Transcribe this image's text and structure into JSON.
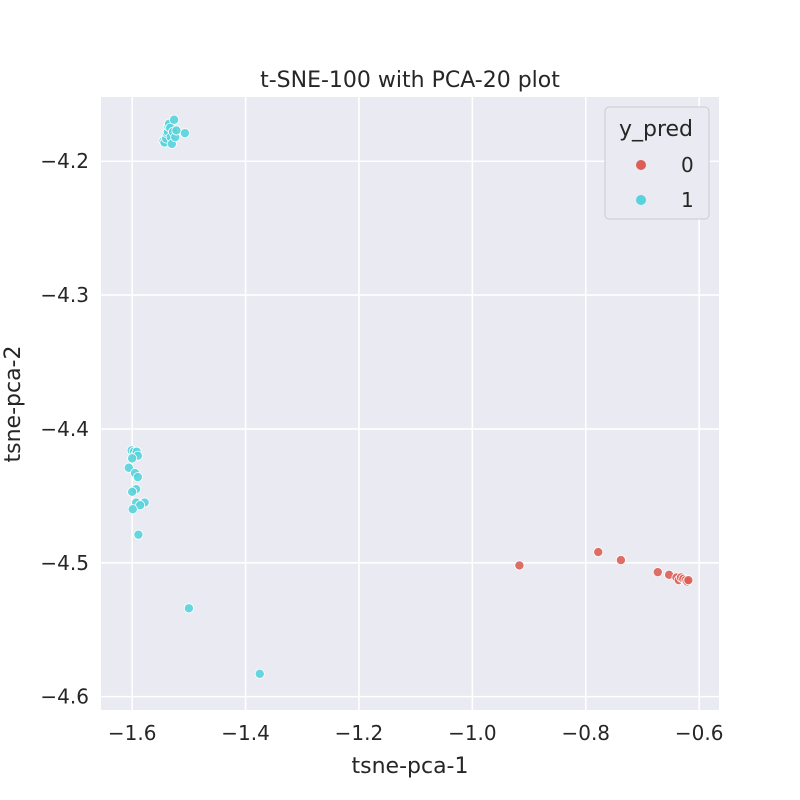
{
  "chart_data": {
    "type": "scatter",
    "title": "t-SNE-100 with PCA-20 plot",
    "xlabel": "tsne-pca-1",
    "ylabel": "tsne-pca-2",
    "xlim": [
      -1.655,
      -0.565
    ],
    "ylim": [
      -4.61,
      -4.152
    ],
    "xticks": [
      -1.6,
      -1.4,
      -1.2,
      -1.0,
      -0.8,
      -0.6
    ],
    "xtick_labels": [
      "−1.6",
      "−1.4",
      "−1.2",
      "−1.0",
      "−0.8",
      "−0.6"
    ],
    "yticks": [
      -4.2,
      -4.3,
      -4.4,
      -4.5,
      -4.6
    ],
    "ytick_labels": [
      "−4.2",
      "−4.3",
      "−4.4",
      "−4.5",
      "−4.6"
    ],
    "grid": true,
    "legend": {
      "title": "y_pred",
      "placement": "top-right"
    },
    "series": [
      {
        "name": "0",
        "color": "#db5f57",
        "points": [
          [
            -0.917,
            -4.502
          ],
          [
            -0.778,
            -4.492
          ],
          [
            -0.738,
            -4.498
          ],
          [
            -0.673,
            -4.507
          ],
          [
            -0.653,
            -4.509
          ],
          [
            -0.64,
            -4.511
          ],
          [
            -0.636,
            -4.513
          ],
          [
            -0.632,
            -4.511
          ],
          [
            -0.628,
            -4.512
          ],
          [
            -0.624,
            -4.513
          ],
          [
            -0.621,
            -4.514
          ],
          [
            -0.619,
            -4.513
          ]
        ]
      },
      {
        "name": "1",
        "color": "#57d3db",
        "points": [
          [
            -1.545,
            -4.185
          ],
          [
            -1.543,
            -4.186
          ],
          [
            -1.54,
            -4.183
          ],
          [
            -1.539,
            -4.179
          ],
          [
            -1.537,
            -4.178
          ],
          [
            -1.536,
            -4.174
          ],
          [
            -1.535,
            -4.172
          ],
          [
            -1.533,
            -4.175
          ],
          [
            -1.532,
            -4.182
          ],
          [
            -1.53,
            -4.187
          ],
          [
            -1.528,
            -4.178
          ],
          [
            -1.526,
            -4.169
          ],
          [
            -1.524,
            -4.182
          ],
          [
            -1.522,
            -4.177
          ],
          [
            -1.507,
            -4.179
          ],
          [
            -1.601,
            -4.416
          ],
          [
            -1.597,
            -4.417
          ],
          [
            -1.594,
            -4.419
          ],
          [
            -1.592,
            -4.417
          ],
          [
            -1.59,
            -4.42
          ],
          [
            -1.6,
            -4.422
          ],
          [
            -1.606,
            -4.429
          ],
          [
            -1.595,
            -4.433
          ],
          [
            -1.59,
            -4.436
          ],
          [
            -1.593,
            -4.445
          ],
          [
            -1.6,
            -4.447
          ],
          [
            -1.593,
            -4.455
          ],
          [
            -1.578,
            -4.455
          ],
          [
            -1.586,
            -4.457
          ],
          [
            -1.599,
            -4.46
          ],
          [
            -1.589,
            -4.479
          ],
          [
            -1.5,
            -4.534
          ],
          [
            -1.375,
            -4.583
          ]
        ]
      }
    ]
  }
}
